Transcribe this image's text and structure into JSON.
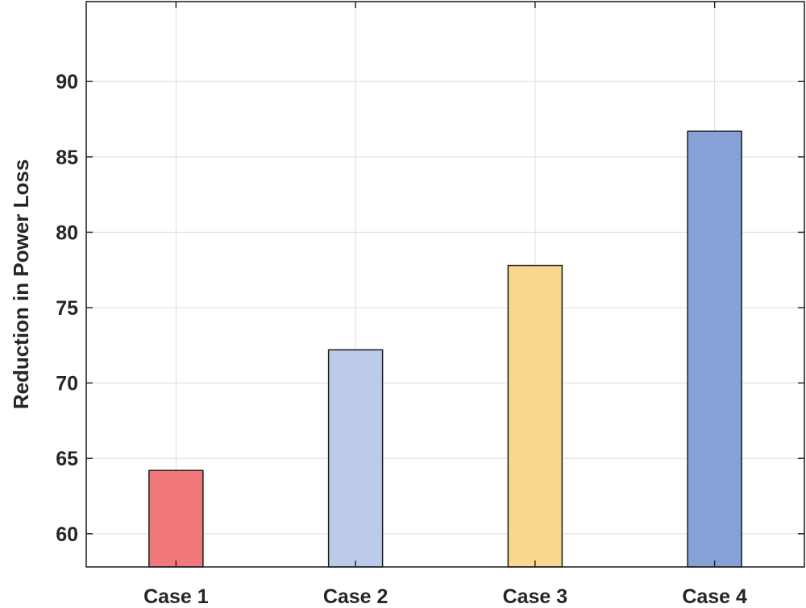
{
  "chart_data": {
    "type": "bar",
    "title": "",
    "xlabel": "",
    "ylabel": "Reduction in Power Loss",
    "categories": [
      "Case 1",
      "Case 2",
      "Case 3",
      "Case 4"
    ],
    "values": [
      64.2,
      72.2,
      77.8,
      86.7
    ],
    "colors": [
      "#f07878",
      "#bccbea",
      "#f8d88e",
      "#84a2d6"
    ],
    "ylim": [
      57.8,
      95.3
    ],
    "yticks": [
      60,
      65,
      70,
      75,
      80,
      85,
      90
    ],
    "grid": true,
    "legend": "none"
  }
}
